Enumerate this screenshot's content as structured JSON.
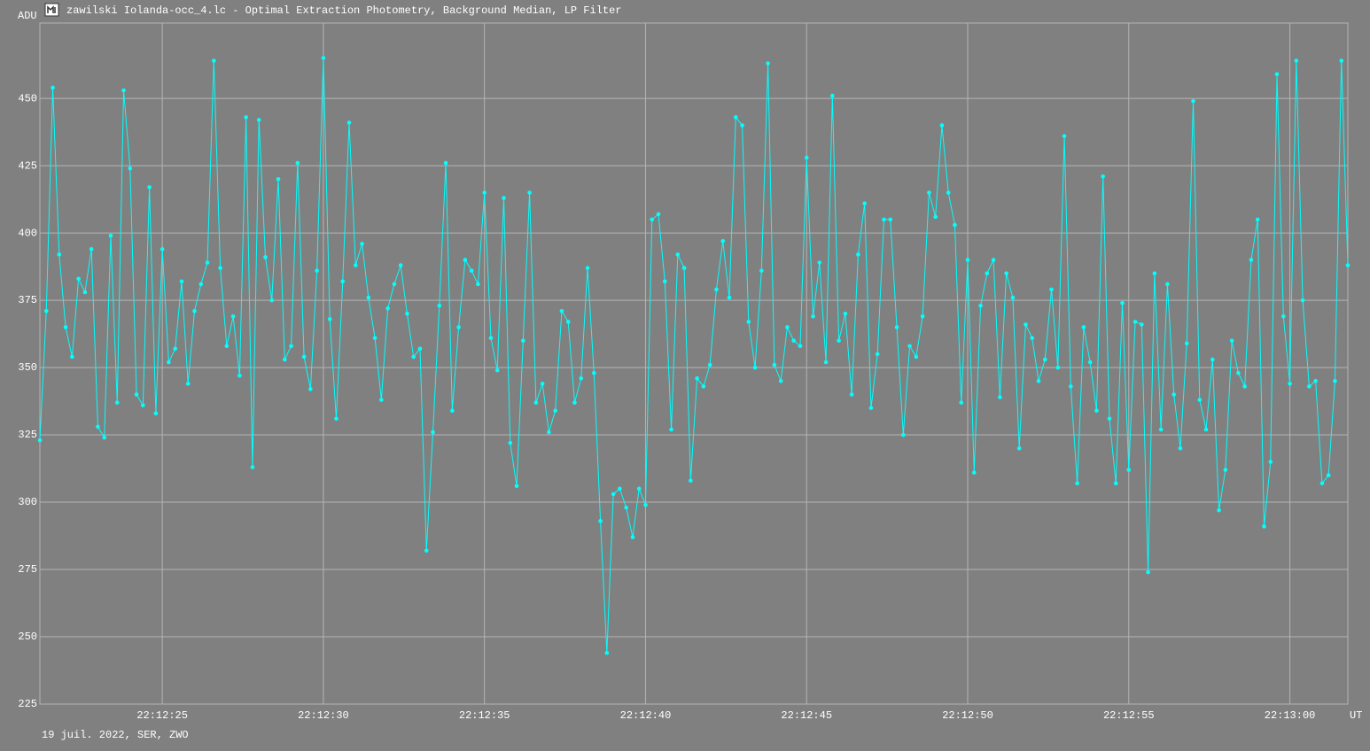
{
  "chart_data": {
    "type": "line",
    "title": "zawilski Iolanda-occ_4.lc - Optimal Extraction Photometry, Background Median, LP Filter",
    "y_label": "ADU",
    "x_label": "UT",
    "footer": "19 juil. 2022, SER, ZWO",
    "color": "#00ffff",
    "grid": true,
    "ylim": [
      225,
      478
    ],
    "yticks": [
      225,
      250,
      275,
      300,
      325,
      350,
      375,
      400,
      425,
      450
    ],
    "xlim": [
      21.2,
      61.8
    ],
    "xticks": [
      {
        "value": 25,
        "label": "22:12:25"
      },
      {
        "value": 30,
        "label": "22:12:30"
      },
      {
        "value": 35,
        "label": "22:12:35"
      },
      {
        "value": 40,
        "label": "22:12:40"
      },
      {
        "value": 45,
        "label": "22:12:45"
      },
      {
        "value": 50,
        "label": "22:12:50"
      },
      {
        "value": 55,
        "label": "22:12:55"
      },
      {
        "value": 60,
        "label": "22:13:00"
      }
    ],
    "x": [
      21.2,
      21.4,
      21.6,
      21.8,
      22,
      22.2,
      22.4,
      22.6,
      22.8,
      23,
      23.2,
      23.4,
      23.6,
      23.8,
      24,
      24.2,
      24.4,
      24.6,
      24.8,
      25,
      25.2,
      25.4,
      25.6,
      25.8,
      26,
      26.2,
      26.4,
      26.6,
      26.8,
      27,
      27.2,
      27.4,
      27.6,
      27.8,
      28,
      28.2,
      28.4,
      28.6,
      28.8,
      29,
      29.2,
      29.4,
      29.6,
      29.8,
      30,
      30.2,
      30.4,
      30.6,
      30.8,
      31,
      31.2,
      31.4,
      31.6,
      31.8,
      32,
      32.2,
      32.4,
      32.6,
      32.8,
      33,
      33.2,
      33.4,
      33.6,
      33.8,
      34,
      34.2,
      34.4,
      34.6,
      34.8,
      35,
      35.2,
      35.4,
      35.6,
      35.8,
      36,
      36.2,
      36.4,
      36.6,
      36.8,
      37,
      37.2,
      37.4,
      37.6,
      37.8,
      38,
      38.2,
      38.4,
      38.6,
      38.8,
      39,
      39.2,
      39.4,
      39.6,
      39.8,
      40,
      40.2,
      40.4,
      40.6,
      40.8,
      41,
      41.2,
      41.4,
      41.6,
      41.8,
      42,
      42.2,
      42.4,
      42.6,
      42.8,
      43,
      43.2,
      43.4,
      43.6,
      43.8,
      44,
      44.2,
      44.4,
      44.6,
      44.8,
      45,
      45.2,
      45.4,
      45.6,
      45.8,
      46,
      46.2,
      46.4,
      46.6,
      46.8,
      47,
      47.2,
      47.4,
      47.6,
      47.8,
      48,
      48.2,
      48.4,
      48.6,
      48.8,
      49,
      49.2,
      49.4,
      49.6,
      49.8,
      50,
      50.2,
      50.4,
      50.6,
      50.8,
      51,
      51.2,
      51.4,
      51.6,
      51.8,
      52,
      52.2,
      52.4,
      52.6,
      52.8,
      53,
      53.2,
      53.4,
      53.6,
      53.8,
      54,
      54.2,
      54.4,
      54.6,
      54.8,
      55,
      55.2,
      55.4,
      55.6,
      55.8,
      56,
      56.2,
      56.4,
      56.6,
      56.8,
      57,
      57.2,
      57.4,
      57.6,
      57.8,
      58,
      58.2,
      58.4,
      58.6,
      58.8,
      59,
      59.2,
      59.4,
      59.6,
      59.8,
      60,
      60.2,
      60.4,
      60.6,
      60.8,
      61,
      61.2,
      61.4,
      61.6,
      61.8
    ],
    "values": [
      323,
      371,
      454,
      392,
      365,
      354,
      383,
      378,
      394,
      328,
      324,
      399,
      337,
      453,
      424,
      340,
      336,
      417,
      333,
      394,
      352,
      357,
      382,
      344,
      371,
      381,
      389,
      464,
      387,
      358,
      369,
      347,
      443,
      313,
      442,
      391,
      375,
      420,
      353,
      358,
      426,
      354,
      342,
      386,
      465,
      368,
      331,
      382,
      441,
      388,
      396,
      376,
      361,
      338,
      372,
      381,
      388,
      370,
      354,
      357,
      282,
      326,
      373,
      426,
      334,
      365,
      390,
      386,
      381,
      415,
      361,
      349,
      413,
      322,
      306,
      360,
      415,
      337,
      344,
      326,
      334,
      371,
      367,
      337,
      346,
      387,
      348,
      293,
      244,
      303,
      305,
      298,
      287,
      305,
      299,
      405,
      407,
      382,
      327,
      392,
      387,
      308,
      346,
      343,
      351,
      379,
      397,
      376,
      443,
      440,
      367,
      350,
      386,
      463,
      351,
      345,
      365,
      360,
      358,
      428,
      369,
      389,
      352,
      451,
      360,
      370,
      340,
      392,
      411,
      335,
      355,
      405,
      405,
      365,
      325,
      358,
      354,
      369,
      415,
      406,
      440,
      415,
      403,
      337,
      390,
      311,
      373,
      385,
      390,
      339,
      385,
      376,
      320,
      366,
      361,
      345,
      353,
      379,
      350,
      436,
      343,
      307,
      365,
      352,
      334,
      421,
      331,
      307,
      374,
      312,
      367,
      366,
      274,
      385,
      327,
      381,
      340,
      320,
      359,
      449,
      338,
      327,
      353,
      297,
      312,
      360,
      348,
      343,
      390,
      405,
      291,
      315,
      459,
      369,
      344,
      464,
      375,
      343,
      345,
      307,
      310,
      345,
      464,
      388
    ]
  }
}
